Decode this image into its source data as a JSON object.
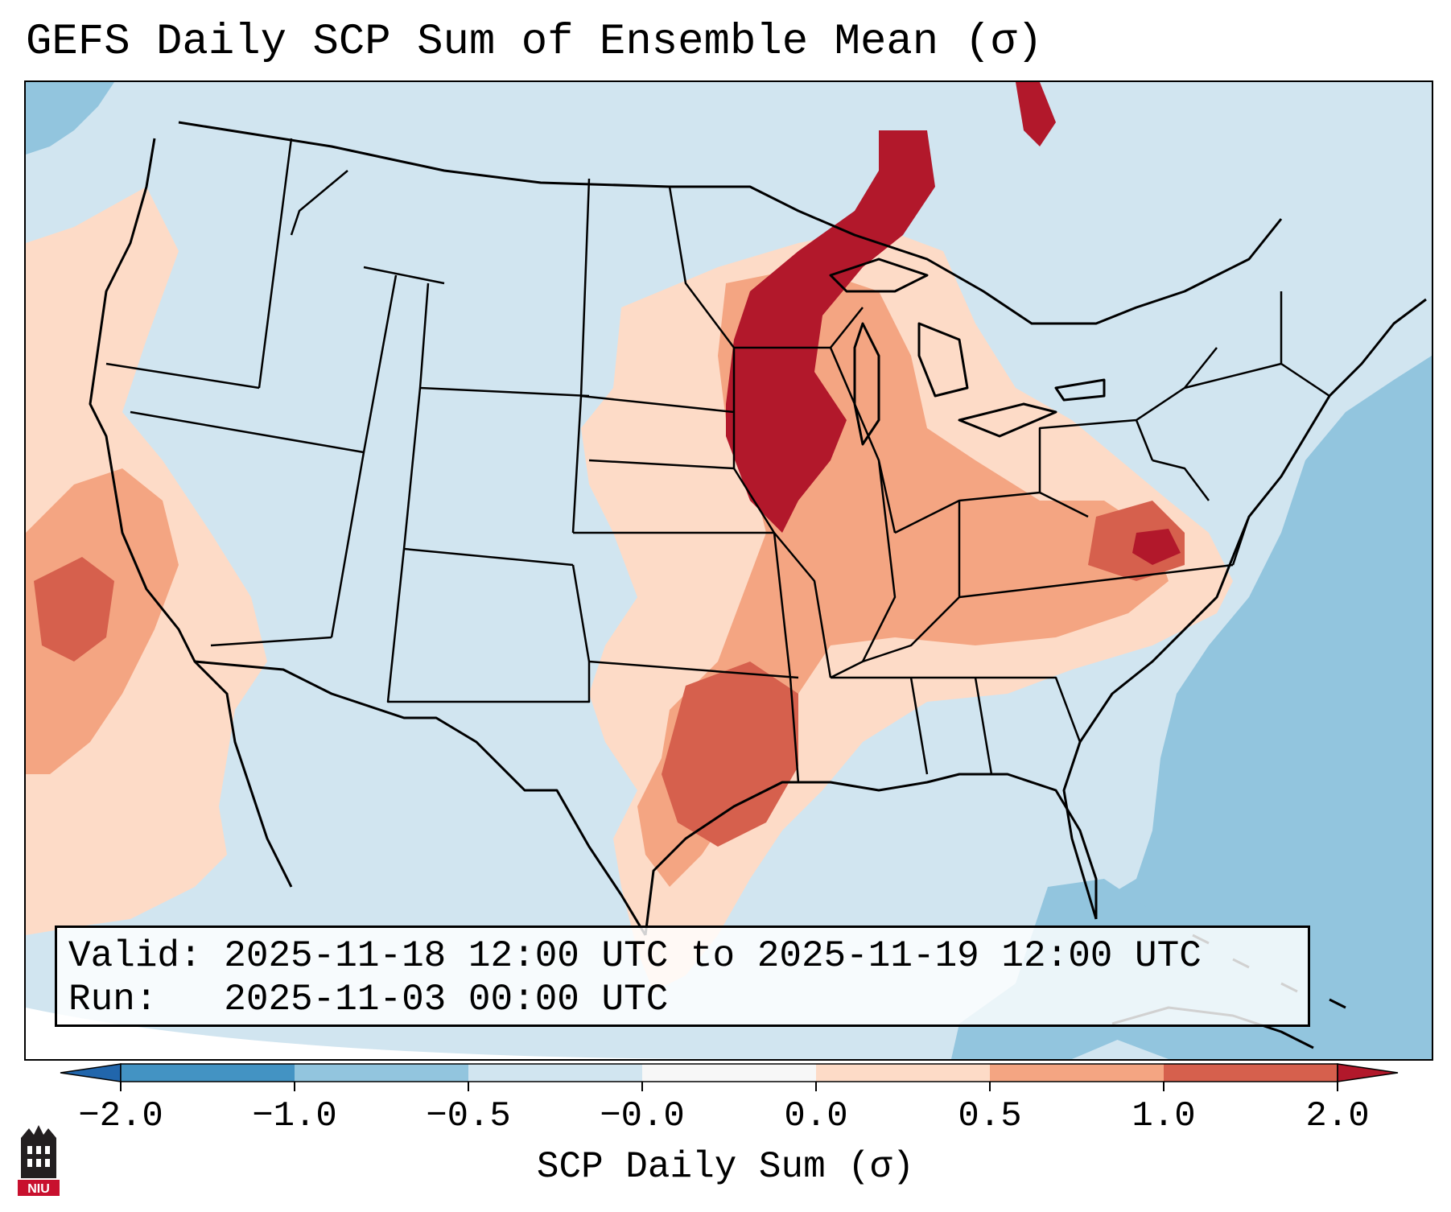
{
  "title": "GEFS Daily SCP Sum of Ensemble Mean (σ)",
  "info": {
    "valid_line": "Valid: 2025-11-18 12:00 UTC to 2025-11-19 12:00 UTC",
    "run_line": "Run:   2025-11-03 00:00 UTC"
  },
  "colorbar": {
    "label": "SCP Daily Sum (σ)",
    "ticks": [
      "−2.0",
      "−1.0",
      "−0.5",
      "−0.0",
      "0.0",
      "0.5",
      "1.0",
      "2.0"
    ],
    "colors": [
      "#4393c3",
      "#92c5de",
      "#d1e5f0",
      "#f7f7f7",
      "#fddbc7",
      "#f4a582",
      "#d6604d",
      "#b2182b"
    ],
    "extend_low_color": "#2166ac",
    "extend_high_color": "#b2182b"
  },
  "logo": {
    "text": "NIU",
    "color": "#c8102e"
  },
  "map": {
    "background_color": "#d1e5f0",
    "line_color": "#000000"
  }
}
